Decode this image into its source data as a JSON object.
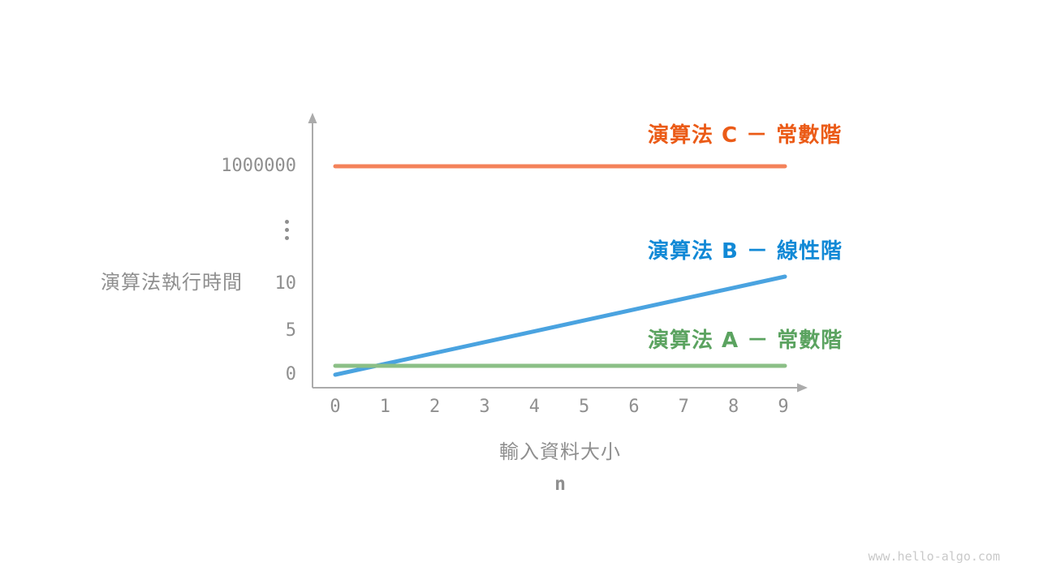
{
  "page": {
    "background": "#FFFFFF",
    "watermark": "www.hello-algo.com",
    "watermark_color": "#C9C9C9"
  },
  "chart_data": {
    "type": "line",
    "title": "",
    "ylabel": "演算法執行時間",
    "xlabel_line1": "輸入資料大小",
    "xlabel_line2": "n",
    "axis_color": "#ABABAB",
    "text_color": "#8F8F8F",
    "grid": false,
    "broken_y_axis": true,
    "x_range": [
      0,
      9
    ],
    "x_ticks": [
      "0",
      "1",
      "2",
      "3",
      "4",
      "5",
      "6",
      "7",
      "8",
      "9"
    ],
    "y_ticks": [
      "1000000",
      "⋮",
      "10",
      "5",
      "0"
    ],
    "series": [
      {
        "id": "C",
        "label": "演算法 C － 常數階",
        "complexity": "constant",
        "value": 1000000,
        "values": [
          1000000,
          1000000,
          1000000,
          1000000,
          1000000,
          1000000,
          1000000,
          1000000,
          1000000,
          1000000
        ],
        "line_color": "#F4825A",
        "label_color": "#EB5B17"
      },
      {
        "id": "B",
        "label": "演算法 B － 線性階",
        "complexity": "linear",
        "values_at_range_ends": [
          0,
          11
        ],
        "line_color": "#4AA3E0",
        "label_color": "#1189D6"
      },
      {
        "id": "A",
        "label": "演算法 A － 常數階",
        "complexity": "constant",
        "value": 1,
        "values": [
          1,
          1,
          1,
          1,
          1,
          1,
          1,
          1,
          1,
          1
        ],
        "line_color": "#8BBF86",
        "label_color": "#5BA360"
      }
    ]
  }
}
